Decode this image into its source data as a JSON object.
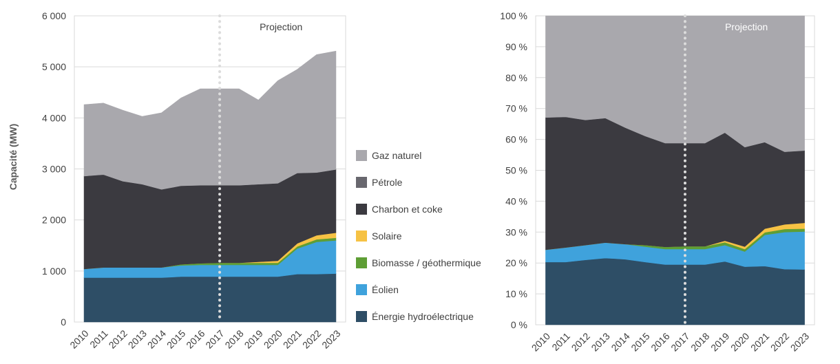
{
  "chart_data": [
    {
      "type": "area",
      "stacked": true,
      "title": "",
      "xlabel": "",
      "ylabel": "Capacité (MW)",
      "ylim": [
        0,
        6000
      ],
      "yticks": [
        "0",
        "1 000",
        "2 000",
        "3 000",
        "4 000",
        "5 000",
        "6 000"
      ],
      "categories": [
        "2010",
        "2011",
        "2012",
        "2013",
        "2014",
        "2015",
        "2016",
        "2017",
        "2018",
        "2019",
        "2020",
        "2021",
        "2022",
        "2023"
      ],
      "annotation": "Projection",
      "projection_start": "2017",
      "series": [
        {
          "name": "Énergie hydroélectrique",
          "color": "#2e4e66",
          "values": [
            870,
            870,
            870,
            870,
            870,
            890,
            890,
            890,
            890,
            890,
            890,
            940,
            940,
            950
          ]
        },
        {
          "name": "Éolien",
          "color": "#3fa2dc",
          "values": [
            170,
            200,
            200,
            200,
            200,
            220,
            230,
            230,
            230,
            230,
            230,
            500,
            630,
            650
          ]
        },
        {
          "name": "Biomasse / géothermique",
          "color": "#5e9e35",
          "values": [
            0,
            0,
            0,
            0,
            0,
            20,
            30,
            40,
            40,
            40,
            40,
            40,
            50,
            50
          ]
        },
        {
          "name": "Solaire",
          "color": "#f6c244",
          "values": [
            0,
            0,
            0,
            0,
            0,
            0,
            0,
            0,
            0,
            20,
            40,
            60,
            80,
            100
          ]
        },
        {
          "name": "Charbon et coke",
          "color": "#3b3a40",
          "values": [
            1820,
            1820,
            1690,
            1630,
            1530,
            1540,
            1530,
            1520,
            1520,
            1520,
            1520,
            1380,
            1230,
            1240
          ]
        },
        {
          "name": "Pétrole",
          "color": "#68676e",
          "values": [
            0,
            0,
            0,
            0,
            0,
            0,
            0,
            0,
            0,
            0,
            0,
            0,
            0,
            0
          ]
        },
        {
          "name": "Gaz naturel",
          "color": "#a9a8ad",
          "values": [
            1400,
            1400,
            1390,
            1330,
            1500,
            1720,
            1890,
            1890,
            1890,
            1650,
            2010,
            2030,
            2310,
            2320
          ]
        }
      ]
    },
    {
      "type": "area",
      "stacked": true,
      "percent": true,
      "title": "",
      "xlabel": "",
      "ylabel": "",
      "ylim": [
        0,
        100
      ],
      "yticks": [
        "0 %",
        "10 %",
        "20 %",
        "30 %",
        "40 %",
        "50 %",
        "60 %",
        "70 %",
        "80 %",
        "90 %",
        "100 %"
      ],
      "categories": [
        "2010",
        "2011",
        "2012",
        "2013",
        "2014",
        "2015",
        "2016",
        "2017",
        "2018",
        "2019",
        "2020",
        "2021",
        "2022",
        "2023"
      ],
      "annotation": "Projection",
      "projection_start": "2017",
      "series": [
        {
          "name": "Énergie hydroélectrique",
          "color": "#2e4e66",
          "values": [
            20.3,
            20.3,
            21.0,
            21.6,
            21.2,
            20.3,
            19.5,
            19.5,
            19.5,
            20.5,
            18.8,
            19.0,
            18.0,
            17.9
          ]
        },
        {
          "name": "Éolien",
          "color": "#3fa2dc",
          "values": [
            4.0,
            4.7,
            4.8,
            5.0,
            4.9,
            5.0,
            5.0,
            5.0,
            5.0,
            5.3,
            4.9,
            10.1,
            12.0,
            12.3
          ]
        },
        {
          "name": "Biomasse / géothermique",
          "color": "#5e9e35",
          "values": [
            0,
            0,
            0,
            0,
            0,
            0.5,
            0.7,
            0.9,
            0.9,
            0.9,
            0.8,
            0.8,
            1.0,
            0.9
          ]
        },
        {
          "name": "Solaire",
          "color": "#f6c244",
          "values": [
            0,
            0,
            0,
            0,
            0,
            0,
            0,
            0,
            0,
            0.5,
            0.8,
            1.2,
            1.5,
            1.9
          ]
        },
        {
          "name": "Charbon et coke",
          "color": "#3b3a40",
          "values": [
            42.8,
            42.3,
            40.5,
            40.3,
            37.7,
            35.3,
            33.6,
            33.4,
            33.4,
            35.0,
            32.2,
            28.0,
            23.5,
            23.4
          ]
        },
        {
          "name": "Pétrole",
          "color": "#68676e",
          "values": [
            0,
            0,
            0,
            0,
            0,
            0,
            0,
            0,
            0,
            0,
            0,
            0,
            0,
            0
          ]
        },
        {
          "name": "Gaz naturel",
          "color": "#a9a8ad",
          "values": [
            32.9,
            32.7,
            33.7,
            33.1,
            36.2,
            38.9,
            41.2,
            41.2,
            41.2,
            37.8,
            42.5,
            40.9,
            44.0,
            43.6
          ]
        }
      ]
    }
  ],
  "legend": {
    "items": [
      {
        "label": "Gaz naturel",
        "color": "#a9a8ad"
      },
      {
        "label": "Pétrole",
        "color": "#68676e"
      },
      {
        "label": "Charbon et coke",
        "color": "#3b3a40"
      },
      {
        "label": "Solaire",
        "color": "#f6c244"
      },
      {
        "label": "Biomasse / géothermique",
        "color": "#5e9e35"
      },
      {
        "label": "Éolien",
        "color": "#3fa2dc"
      },
      {
        "label": "Énergie hydroélectrique",
        "color": "#2e4e66"
      }
    ]
  }
}
